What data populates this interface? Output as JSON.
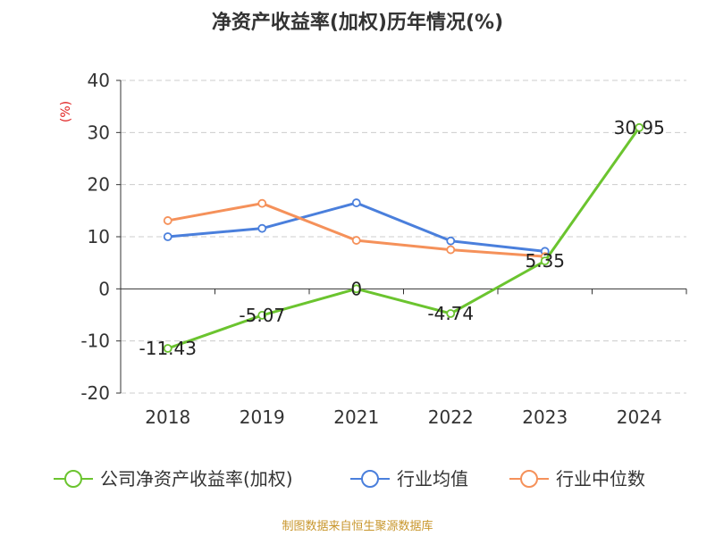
{
  "chart_data": {
    "type": "line",
    "title": "净资产收益率(加权)历年情况(%)",
    "ylabel": "(%)",
    "xlabel": "",
    "categories": [
      "2018",
      "2019",
      "2021",
      "2022",
      "2023",
      "2024"
    ],
    "ylim": [
      -20,
      40
    ],
    "yticks": [
      40,
      30,
      20,
      10,
      0,
      -10,
      -20
    ],
    "ytick_labels": [
      "40",
      "30",
      "20",
      "10",
      "0",
      "-10",
      "-20"
    ],
    "grid": true,
    "legend_position": "bottom",
    "series": [
      {
        "name": "公司净资产收益率(加权)",
        "color": "#6bc42f",
        "values": [
          -11.43,
          -5.07,
          0,
          -4.74,
          5.35,
          30.95
        ],
        "labels": [
          "-11.43",
          "-5.07",
          "0",
          "-4.74",
          "5.35",
          "30.95"
        ]
      },
      {
        "name": "行业均值",
        "color": "#4a7fdc",
        "values": [
          10.0,
          11.6,
          16.5,
          9.2,
          7.2,
          null
        ]
      },
      {
        "name": "行业中位数",
        "color": "#f5915a",
        "values": [
          13.1,
          16.4,
          9.3,
          7.5,
          6.2,
          null
        ]
      }
    ]
  },
  "source": "制图数据来自恒生聚源数据库"
}
